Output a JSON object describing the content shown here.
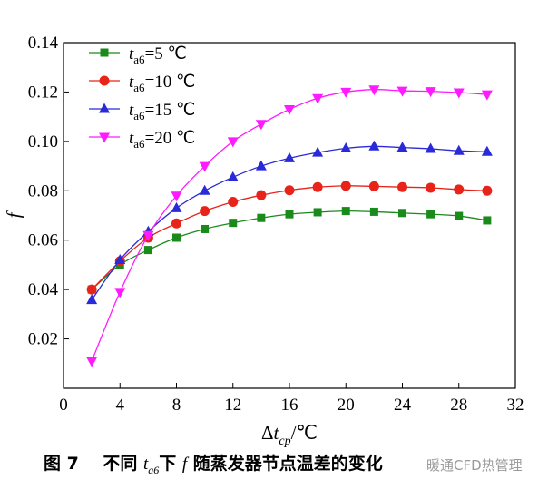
{
  "chart_data": {
    "type": "line",
    "xlabel": "Δt",
    "xlabel_sub": "cp",
    "xlabel_unit": "/℃",
    "ylabel": "f",
    "xlim": [
      0,
      32
    ],
    "ylim": [
      0,
      0.14
    ],
    "x_ticks": [
      "0",
      "4",
      "8",
      "12",
      "16",
      "20",
      "24",
      "28",
      "32"
    ],
    "y_ticks": [
      "0.02",
      "0.04",
      "0.06",
      "0.08",
      "0.10",
      "0.12",
      "0.14"
    ],
    "legend_position": "top-left",
    "x": [
      2,
      4,
      6,
      8,
      10,
      12,
      14,
      16,
      18,
      20,
      22,
      24,
      26,
      28,
      30
    ],
    "series": [
      {
        "name_var": "t",
        "name_sub": "a6",
        "name_val": "=5 ℃",
        "color": "#1a8a1a",
        "marker": "square",
        "values": [
          0.04,
          0.05,
          0.056,
          0.061,
          0.0645,
          0.067,
          0.069,
          0.0705,
          0.0713,
          0.0718,
          0.0715,
          0.071,
          0.0705,
          0.0698,
          0.068
        ]
      },
      {
        "name_var": "t",
        "name_sub": "a6",
        "name_val": "=10 ℃",
        "color": "#e8231a",
        "marker": "circle",
        "values": [
          0.04,
          0.0515,
          0.061,
          0.0668,
          0.0718,
          0.0755,
          0.0782,
          0.0802,
          0.0815,
          0.082,
          0.0818,
          0.0815,
          0.0812,
          0.0805,
          0.08
        ]
      },
      {
        "name_var": "t",
        "name_sub": "a6",
        "name_val": "=15 ℃",
        "color": "#2a2ad8",
        "marker": "triangle-up",
        "values": [
          0.0358,
          0.052,
          0.0635,
          0.073,
          0.08,
          0.0855,
          0.09,
          0.0932,
          0.0955,
          0.0972,
          0.098,
          0.0975,
          0.097,
          0.0962,
          0.0958
        ]
      },
      {
        "name_var": "t",
        "name_sub": "a6",
        "name_val": "=20 ℃",
        "color": "#ff1aff",
        "marker": "triangle-down",
        "values": [
          0.011,
          0.039,
          0.062,
          0.078,
          0.09,
          0.1,
          0.107,
          0.113,
          0.1175,
          0.12,
          0.121,
          0.1205,
          0.1203,
          0.1198,
          0.119
        ]
      }
    ]
  },
  "caption": {
    "fig": "图 7",
    "pre": "不同",
    "var": "t",
    "sub": "a6",
    "mid": "下",
    "fvar": "f",
    "post": "随蒸发器节点温差的变化"
  },
  "watermark": "暖通CFD热管理"
}
